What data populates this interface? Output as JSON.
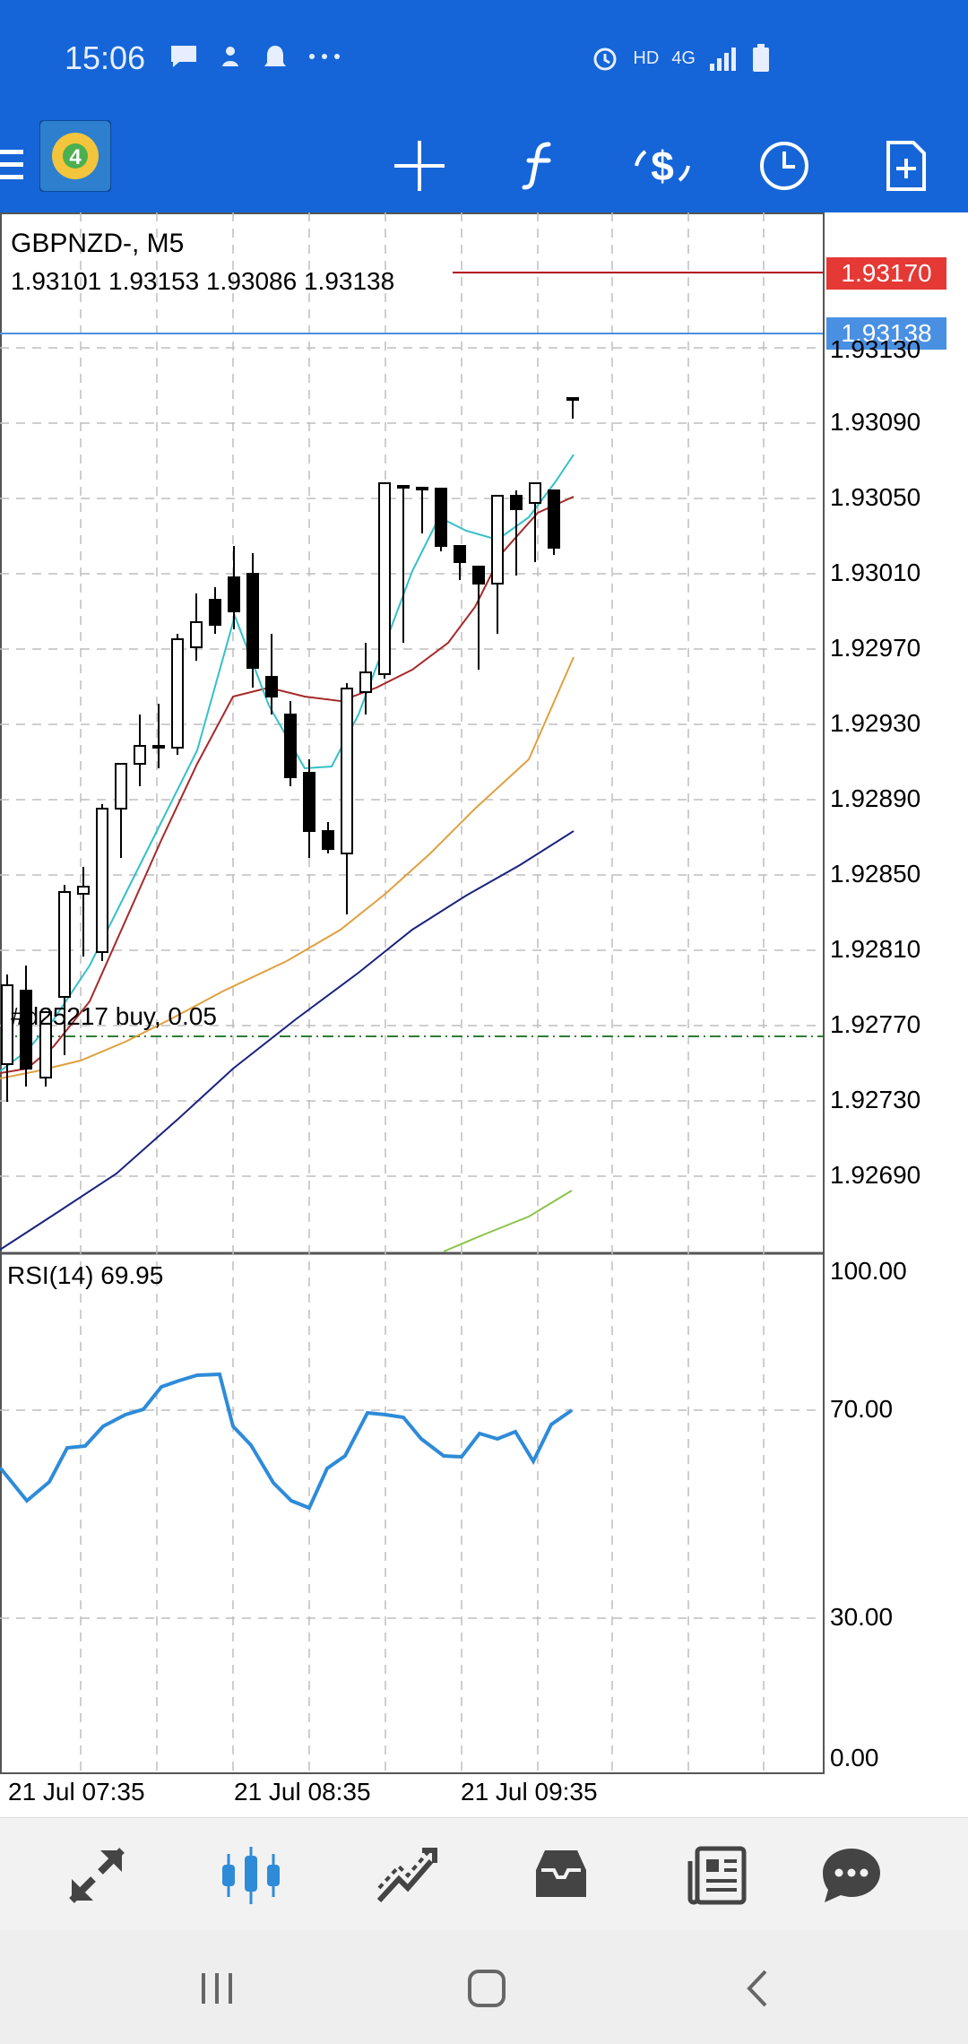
{
  "status_bar": {
    "time": "15:06",
    "network_label": "HD",
    "signal_label": "4G"
  },
  "toolbar": {
    "menu_icon": "hamburger-menu-icon",
    "logo": "metatrader-logo",
    "tools": [
      "crosshair-icon",
      "indicators-f-icon",
      "symbol-dollar-icon",
      "timeframe-clock-icon",
      "new-order-icon"
    ]
  },
  "chart": {
    "symbol": "GBPNZD-, M5",
    "ohlc": "1.93101 1.93153 1.93086 1.93138",
    "ask_price": "1.93170",
    "bid_price": "1.93138",
    "order_label": "#d25217 buy, 0.05",
    "price_ticks": [
      "1.93130",
      "1.93090",
      "1.93050",
      "1.93010",
      "1.92970",
      "1.92930",
      "1.92890",
      "1.92850",
      "1.92810",
      "1.92770",
      "1.92730",
      "1.92690"
    ],
    "time_ticks": [
      "21 Jul 07:35",
      "21 Jul 08:35",
      "21 Jul 09:35"
    ],
    "rsi_label": "RSI(14) 69.95",
    "rsi_ticks": [
      "100.00",
      "70.00",
      "30.00",
      "0.00"
    ],
    "colors": {
      "ask": "#e53935",
      "bid": "#4a90e2",
      "ma_fast": "#35c0c8",
      "ma_red": "#a52a2a",
      "ma_orange": "#e0a040",
      "ma_navy": "#1a237e",
      "ma_green": "#8bc34a",
      "rsi": "#2e8bd8",
      "order": "#2e7d32"
    }
  },
  "bottom_nav": [
    "quotes-icon",
    "chart-icon",
    "trade-icon",
    "history-icon",
    "news-icon",
    "chat-icon"
  ],
  "system_nav": [
    "recent-apps-icon",
    "home-icon",
    "back-icon"
  ]
}
